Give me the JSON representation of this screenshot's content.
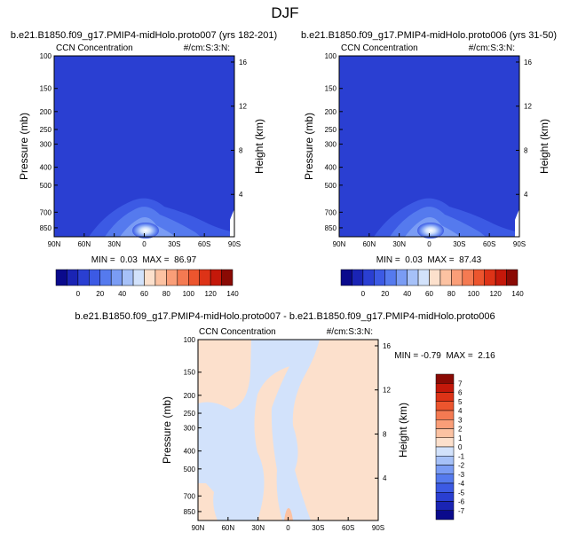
{
  "figure": {
    "title": "DJF"
  },
  "colors": {
    "abs_levels": [
      "#0a0a8c",
      "#1a24b4",
      "#2a3fd2",
      "#3c5ae4",
      "#557aee",
      "#7a9cf4",
      "#a6c1f8",
      "#d2e2fb",
      "#fce0cc",
      "#fcc2a2",
      "#fa9e78",
      "#f47a52",
      "#ec552e",
      "#dd3317",
      "#c4180a",
      "#8a0a04"
    ],
    "diff_levels": [
      "#0a0a8c",
      "#1a24b4",
      "#2a3fd2",
      "#3c5ae4",
      "#557aee",
      "#7a9cf4",
      "#a6c1f8",
      "#d2e2fb",
      "#fce0cc",
      "#fcc2a2",
      "#fa9e78",
      "#f47a52",
      "#ec552e",
      "#dd3317",
      "#c4180a",
      "#8a0a04"
    ]
  },
  "chart_data": [
    {
      "type": "heatmap",
      "id": "panel1",
      "title": "b.e21.B1850.f09_g17.PMIP4-midHolo.proto007 (yrs 182-201)",
      "left_label": "CCN Concentration",
      "right_label": "#/cm:S:3:N:",
      "ylabel": "Pressure (mb)",
      "ylabel_right": "Height (km)",
      "x_ticks": [
        "90N",
        "60N",
        "30N",
        "0",
        "30S",
        "60S",
        "90S"
      ],
      "y_ticks": [
        "100",
        "150",
        "200",
        "250",
        "300",
        "400",
        "500",
        "700",
        "850"
      ],
      "height_ticks": [
        "16",
        "12",
        "8",
        "4"
      ],
      "stats": "MIN =  0.03  MAX =  86.97",
      "min": 0.03,
      "max": 86.97
    },
    {
      "type": "heatmap",
      "id": "panel2",
      "title": "b.e21.B1850.f09_g17.PMIP4-midHolo.proto006 (yrs 31-50)",
      "left_label": "CCN Concentration",
      "right_label": "#/cm:S:3:N:",
      "ylabel": "Pressure (mb)",
      "ylabel_right": "Height (km)",
      "x_ticks": [
        "90N",
        "60N",
        "30N",
        "0",
        "30S",
        "60S",
        "90S"
      ],
      "y_ticks": [
        "100",
        "150",
        "200",
        "250",
        "300",
        "400",
        "500",
        "700",
        "850"
      ],
      "height_ticks": [
        "16",
        "12",
        "8",
        "4"
      ],
      "stats": "MIN =  0.03  MAX =  87.43",
      "min": 0.03,
      "max": 87.43
    },
    {
      "type": "heatmap",
      "id": "diff",
      "title": "b.e21.B1850.f09_g17.PMIP4-midHolo.proto007 - b.e21.B1850.f09_g17.PMIP4-midHolo.proto006",
      "left_label": "CCN Concentration",
      "right_label": "#/cm:S:3:N:",
      "ylabel": "Pressure (mb)",
      "ylabel_right": "Height (km)",
      "x_ticks": [
        "90N",
        "60N",
        "30N",
        "0",
        "30S",
        "60S",
        "90S"
      ],
      "y_ticks": [
        "100",
        "150",
        "200",
        "250",
        "300",
        "400",
        "500",
        "700",
        "850"
      ],
      "height_ticks": [
        "16",
        "12",
        "8",
        "4"
      ],
      "stats": "MIN = -0.79  MAX =  2.16",
      "min": -0.79,
      "max": 2.16
    }
  ],
  "colorbars": {
    "abs_labels": [
      "0",
      "20",
      "40",
      "60",
      "80",
      "100",
      "120",
      "140"
    ],
    "diff_labels": [
      "7",
      "6",
      "5",
      "4",
      "3",
      "2",
      "1",
      "0",
      "-1",
      "-2",
      "-3",
      "-4",
      "-5",
      "-6",
      "-7"
    ]
  }
}
